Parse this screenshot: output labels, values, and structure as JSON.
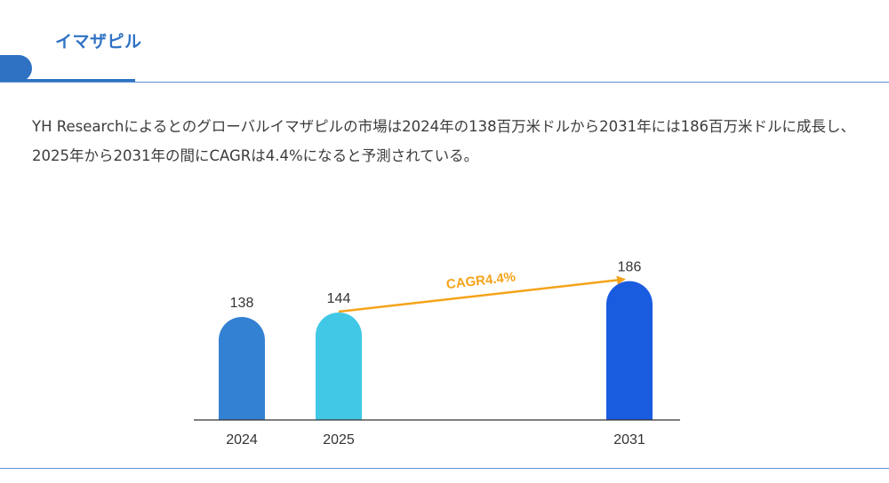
{
  "header": {
    "title": "イマザピル"
  },
  "description": "YH Researchによるとのグローバルイマザピルの市場は2024年の138百万米ドルから2031年には186百万米ドルに成長し、2025年から2031年の間にCAGRは4.4%になると予測されている。",
  "colors": {
    "accent": "#2f72c4",
    "bar_2024": "#3281d3",
    "bar_2025": "#41c8e6",
    "bar_2031": "#1a5ce0",
    "cagr_arrow": "#f5a31a"
  },
  "chart_data": {
    "type": "bar",
    "categories": [
      "2024",
      "2025",
      "2031"
    ],
    "values": [
      138,
      144,
      186
    ],
    "annotation": "CAGR4.4%",
    "ylim": [
      0,
      200
    ]
  }
}
